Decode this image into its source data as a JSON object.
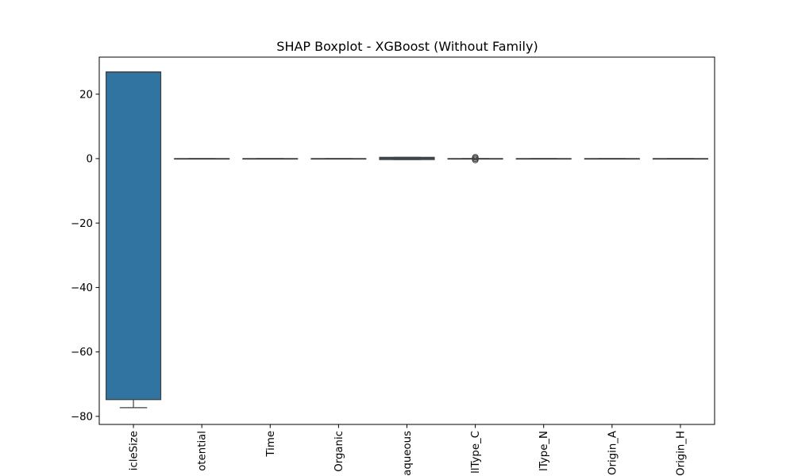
{
  "chart_data": {
    "type": "box",
    "title": "SHAP Boxplot - XGBoost (Without Family)",
    "xlabel": "",
    "ylabel": "",
    "ylim": [
      -82.5,
      31.5
    ],
    "yticks": [
      20,
      0,
      -20,
      -40,
      -60,
      -80
    ],
    "ytick_labels": [
      "20",
      "0",
      "−20",
      "−40",
      "−60",
      "−80"
    ],
    "grid": false,
    "box_color": "#3274a1",
    "categories": [
      "ParticleSize",
      "Potential",
      "Time",
      "Organic",
      "Aqueous",
      "CellType_C",
      "CellType_N",
      "Origin_A",
      "Origin_H"
    ],
    "category_labels_visible": [
      "icleSize",
      "otential",
      "Time",
      "Organic",
      "aqueous",
      "llType_C",
      "lType_N",
      "Origin_A",
      "Origin_H"
    ],
    "boxes": [
      {
        "whislo": -77.3,
        "q1": -74.8,
        "med": 26.9,
        "q3": 26.9,
        "whishi": 26.9,
        "fliers": []
      },
      {
        "whislo": 0.0,
        "q1": 0.0,
        "med": 0.0,
        "q3": 0.0,
        "whishi": 0.0,
        "fliers": []
      },
      {
        "whislo": 0.0,
        "q1": 0.0,
        "med": 0.0,
        "q3": 0.0,
        "whishi": 0.0,
        "fliers": []
      },
      {
        "whislo": 0.0,
        "q1": 0.0,
        "med": 0.0,
        "q3": 0.0,
        "whishi": 0.0,
        "fliers": []
      },
      {
        "whislo": -0.3,
        "q1": -0.3,
        "med": 0.1,
        "q3": 0.4,
        "whishi": 0.4,
        "fliers": []
      },
      {
        "whislo": 0.0,
        "q1": 0.0,
        "med": 0.0,
        "q3": 0.0,
        "whishi": 0.0,
        "fliers": [
          -0.4,
          0.0,
          0.4
        ]
      },
      {
        "whislo": 0.0,
        "q1": 0.0,
        "med": 0.0,
        "q3": 0.0,
        "whishi": 0.0,
        "fliers": []
      },
      {
        "whislo": 0.0,
        "q1": 0.0,
        "med": 0.0,
        "q3": 0.0,
        "whishi": 0.0,
        "fliers": []
      },
      {
        "whislo": 0.0,
        "q1": 0.0,
        "med": 0.0,
        "q3": 0.0,
        "whishi": 0.0,
        "fliers": []
      }
    ]
  }
}
